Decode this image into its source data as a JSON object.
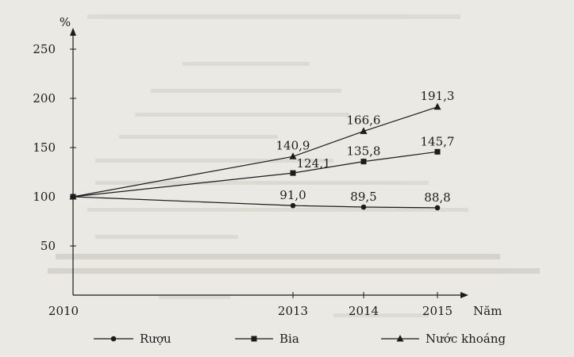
{
  "chart_data": {
    "type": "line",
    "title": "",
    "ylabel": "%",
    "xlabel": "Năm",
    "x": [
      2010,
      2013,
      2014,
      2015
    ],
    "x_tick_labels": [
      "2010",
      "2013",
      "2014",
      "2015"
    ],
    "y_ticks": [
      50,
      100,
      150,
      200,
      250
    ],
    "y_tick_labels": [
      "50",
      "100",
      "150",
      "200",
      "250"
    ],
    "ylim": [
      0,
      275
    ],
    "series": [
      {
        "name": "Rượu",
        "marker": "circle",
        "values": [
          100,
          91.0,
          89.5,
          88.8
        ],
        "labels": [
          "",
          "91,0",
          "89,5",
          "88,8"
        ]
      },
      {
        "name": "Bia",
        "marker": "square",
        "values": [
          100,
          124.1,
          135.8,
          145.7
        ],
        "labels": [
          "",
          "124,1",
          "135,8",
          "145,7"
        ]
      },
      {
        "name": "Nước khoáng",
        "marker": "triangle",
        "values": [
          100,
          140.9,
          166.6,
          191.3
        ],
        "labels": [
          "",
          "140,9",
          "166,6",
          "191,3"
        ]
      }
    ],
    "colors": {
      "line": "#1c1c1c",
      "text": "#1c1c1c",
      "background": "#ebe9e4"
    }
  }
}
